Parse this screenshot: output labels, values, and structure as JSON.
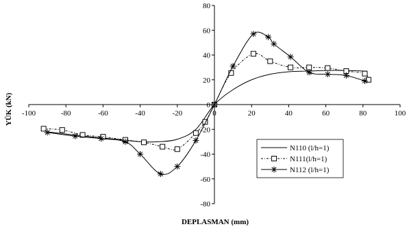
{
  "chart_data": {
    "type": "line",
    "xlabel": "DEPLASMAN (mm)",
    "ylabel": "YÜK (kN)",
    "xlim": [
      -100,
      100
    ],
    "ylim": [
      -80,
      80
    ],
    "xticks": [
      -100,
      -80,
      -60,
      -40,
      -20,
      0,
      20,
      40,
      60,
      80,
      100
    ],
    "yticks": [
      -80,
      -60,
      -40,
      -20,
      0,
      20,
      40,
      60,
      80
    ],
    "grid": false,
    "legend_position": "bottom-right",
    "series": [
      {
        "name": "N110 (l/h=1)",
        "marker": "none",
        "dash": "solid",
        "x": [
          -90,
          -70,
          -50,
          -40,
          -30,
          -20,
          -10,
          0,
          10,
          20,
          30,
          40,
          50,
          60,
          70,
          82
        ],
        "y": [
          -22,
          -25.5,
          -28.5,
          -30,
          -30,
          -28,
          -20,
          0,
          12,
          20,
          24.5,
          26.5,
          27,
          27.5,
          27.5,
          27
        ]
      },
      {
        "name": "N111(l/h=1)",
        "marker": "square",
        "dash": "dash-dot",
        "x": [
          -92,
          -82,
          -71,
          -60,
          -48,
          -38,
          -28,
          -20,
          -10,
          -5,
          0,
          9,
          21,
          30,
          41,
          51,
          61,
          71,
          81,
          83
        ],
        "y": [
          -19.5,
          -20.5,
          -24.5,
          -26,
          -28.5,
          -30.5,
          -34,
          -36,
          -23,
          -14,
          0,
          25.5,
          41,
          35,
          30,
          30,
          29.5,
          27,
          25,
          20
        ]
      },
      {
        "name": "N112 (l/h=1)",
        "marker": "star",
        "dash": "solid",
        "x": [
          -90,
          -75,
          -61,
          -48,
          -40,
          -29,
          -20,
          -10,
          0,
          10,
          21,
          29,
          32,
          41,
          51,
          61,
          71,
          81
        ],
        "y": [
          -22.5,
          -25.5,
          -27.5,
          -30,
          -40,
          -56,
          -50,
          -29,
          0,
          31,
          57,
          54.5,
          49,
          38.5,
          26,
          24.5,
          23.5,
          19
        ]
      }
    ]
  }
}
